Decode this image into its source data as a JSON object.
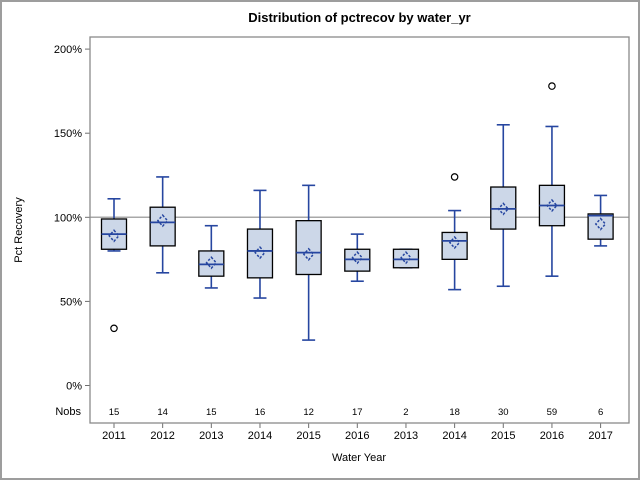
{
  "window": {
    "background": "#ffffff",
    "border_color": "#9d9d9d"
  },
  "chart_data": {
    "type": "box",
    "title": "Distribution of pctrecov by water_yr",
    "xlabel": "Water Year",
    "ylabel": "Pct Recovery",
    "nobs_label": "Nobs",
    "y_ticks": [
      0,
      50,
      100,
      150,
      200
    ],
    "y_tick_suffix": "%",
    "ylim": [
      0,
      207
    ],
    "reference_line": 100,
    "grid": false,
    "legend": "none",
    "categories": [
      "2011",
      "2012",
      "2013",
      "2014",
      "2015",
      "2016",
      "2013",
      "2014",
      "2015",
      "2016",
      "2017"
    ],
    "nobs": [
      15,
      14,
      15,
      16,
      12,
      17,
      2,
      18,
      30,
      59,
      6
    ],
    "boxes": [
      {
        "low": 80,
        "q1": 81,
        "median": 90,
        "mean": 89,
        "q3": 99,
        "high": 111,
        "outliers": [
          34
        ]
      },
      {
        "low": 67,
        "q1": 83,
        "median": 97,
        "mean": 98,
        "q3": 106,
        "high": 124,
        "outliers": []
      },
      {
        "low": 58,
        "q1": 65,
        "median": 72,
        "mean": 73,
        "q3": 80,
        "high": 95,
        "outliers": []
      },
      {
        "low": 52,
        "q1": 64,
        "median": 80,
        "mean": 79,
        "q3": 93,
        "high": 116,
        "outliers": []
      },
      {
        "low": 27,
        "q1": 66,
        "median": 79,
        "mean": 78,
        "q3": 98,
        "high": 119,
        "outliers": []
      },
      {
        "low": 62,
        "q1": 68,
        "median": 75,
        "mean": 76,
        "q3": 81,
        "high": 90,
        "outliers": []
      },
      {
        "low": 70,
        "q1": 70,
        "median": 75,
        "mean": 76,
        "q3": 81,
        "high": 81,
        "outliers": []
      },
      {
        "low": 57,
        "q1": 75,
        "median": 86,
        "mean": 85,
        "q3": 91,
        "high": 104,
        "outliers": [
          124
        ]
      },
      {
        "low": 59,
        "q1": 93,
        "median": 105,
        "mean": 105,
        "q3": 118,
        "high": 155,
        "outliers": []
      },
      {
        "low": 65,
        "q1": 95,
        "median": 107,
        "mean": 107,
        "q3": 119,
        "high": 154,
        "outliers": [
          178
        ]
      },
      {
        "low": 83,
        "q1": 87,
        "median": 101,
        "mean": 96,
        "q3": 102,
        "high": 113,
        "outliers": []
      }
    ],
    "colors": {
      "box_fill": "#ccd7e8",
      "box_stroke": "#000000",
      "line_blue": "#2646a0",
      "frame": "#8a8a8a",
      "tick": "#6e6e6e",
      "ref_line": "#a8a8a8",
      "outlier": "#000000",
      "text": "#000000"
    }
  }
}
